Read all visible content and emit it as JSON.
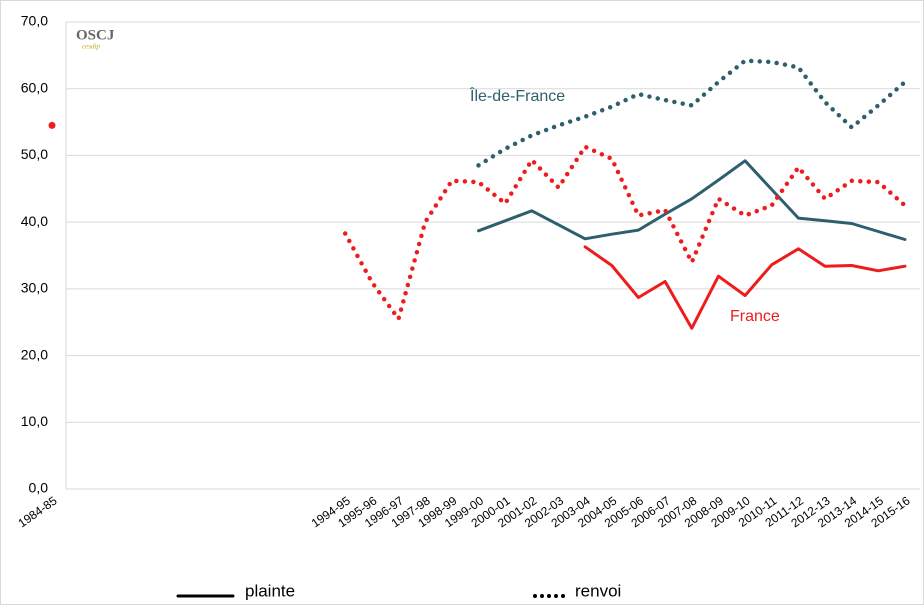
{
  "chart_data": {
    "type": "line",
    "logo": {
      "title": "OSCJ",
      "subtitle": "cesdip"
    },
    "categories": [
      "1984-85",
      null,
      null,
      null,
      null,
      null,
      null,
      null,
      null,
      null,
      null,
      "1994-95",
      "1995-96",
      "1996-97",
      "1997-98",
      "1998-99",
      "1999-00",
      "2000-01",
      "2001-02",
      "2002-03",
      "2003-04",
      "2004-05",
      "2005-06",
      "2006-07",
      "2007-08",
      "2008-09",
      "2009-10",
      "2010-11",
      "2011-12",
      "2012-13",
      "2013-14",
      "2014-15",
      "2015-16"
    ],
    "series": [
      {
        "color": "#2e5f6e",
        "style": "solid",
        "values": [
          null,
          null,
          null,
          null,
          null,
          null,
          null,
          null,
          null,
          null,
          null,
          null,
          null,
          null,
          null,
          null,
          38.7,
          40.2,
          41.7,
          39.6,
          37.5,
          38.2,
          38.8,
          41.2,
          43.5,
          46.3,
          49.2,
          44.9,
          40.6,
          40.2,
          39.8,
          38.6,
          37.4
        ]
      },
      {
        "color": "#2e5f6e",
        "style": "dotted",
        "values": [
          null,
          null,
          null,
          null,
          null,
          null,
          null,
          null,
          null,
          null,
          null,
          null,
          null,
          null,
          null,
          null,
          48.5,
          51.0,
          53.0,
          54.5,
          55.8,
          57.3,
          59.2,
          58.3,
          57.5,
          61.0,
          64.2,
          64.0,
          63.2,
          58.0,
          54.2,
          57.5,
          61.0
        ]
      },
      {
        "color": "#ee1c1c",
        "style": "solid",
        "values": [
          null,
          null,
          null,
          null,
          null,
          null,
          null,
          null,
          null,
          null,
          null,
          null,
          null,
          null,
          null,
          null,
          null,
          null,
          null,
          null,
          36.3,
          33.5,
          28.7,
          31.1,
          24.1,
          31.9,
          29.0,
          33.6,
          36.0,
          33.4,
          33.5,
          32.7,
          33.4
        ]
      },
      {
        "color": "#ee1c1c",
        "style": "dotted",
        "values": [
          54.5,
          null,
          null,
          null,
          null,
          null,
          null,
          null,
          null,
          null,
          null,
          38.3,
          31.0,
          25.5,
          40.0,
          46.2,
          46.0,
          42.8,
          49.3,
          45.2,
          51.3,
          49.5,
          41.0,
          41.8,
          34.0,
          43.5,
          41.0,
          42.5,
          48.2,
          43.5,
          46.2,
          46.0,
          42.5
        ]
      }
    ],
    "annotations": [
      {
        "text": "Île-de-France",
        "color": "#2e5f6e"
      },
      {
        "text": "France",
        "color": "#ee1c1c"
      }
    ],
    "legend": [
      {
        "label": "plainte",
        "style": "solid"
      },
      {
        "label": "renvoi",
        "style": "dotted"
      }
    ],
    "ylim": [
      0,
      70
    ],
    "yticks": [
      {
        "value": 0,
        "label": "0,0"
      },
      {
        "value": 10,
        "label": "10,0"
      },
      {
        "value": 20,
        "label": "20,0"
      },
      {
        "value": 30,
        "label": "30,0"
      },
      {
        "value": 40,
        "label": "40,0"
      },
      {
        "value": 50,
        "label": "50,0"
      },
      {
        "value": 60,
        "label": "60,0"
      },
      {
        "value": 70,
        "label": "70,0"
      }
    ],
    "grid": true
  }
}
